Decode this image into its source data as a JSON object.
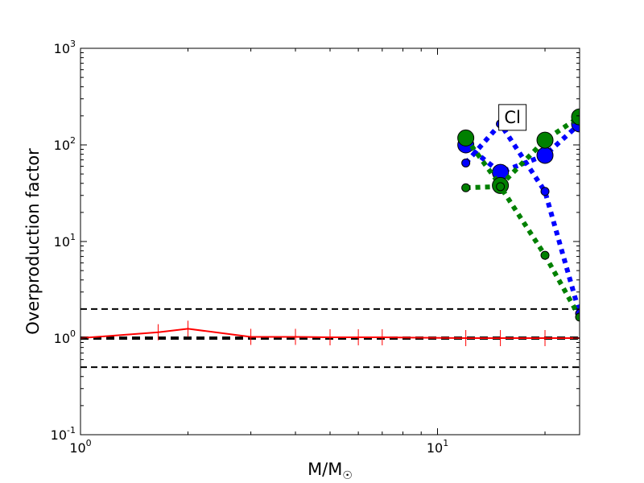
{
  "chart_data": {
    "type": "line",
    "title": "",
    "xlabel": "M/M",
    "xlabel_sub": "☉",
    "ylabel": "Overproduction factor",
    "xscale": "log",
    "yscale": "log",
    "xlim": [
      1,
      25
    ],
    "ylim": [
      0.1,
      1000
    ],
    "x_ticks": [
      {
        "value": 1,
        "base": "10",
        "exp": "0"
      },
      {
        "value": 10,
        "base": "10",
        "exp": "1"
      }
    ],
    "y_ticks": [
      {
        "value": 0.1,
        "base": "10",
        "exp": "-1"
      },
      {
        "value": 1,
        "base": "10",
        "exp": "0"
      },
      {
        "value": 10,
        "base": "10",
        "exp": "1"
      },
      {
        "value": 100,
        "base": "10",
        "exp": "2"
      },
      {
        "value": 1000,
        "base": "10",
        "exp": "3"
      }
    ],
    "reference_lines": [
      {
        "y": 2,
        "color": "#000000",
        "style": "dashed",
        "width": 2
      },
      {
        "y": 1,
        "color": "#000000",
        "style": "dashed",
        "width": 4
      },
      {
        "y": 0.5,
        "color": "#000000",
        "style": "dashed",
        "width": 2
      }
    ],
    "annotation": {
      "text": "Cl",
      "x": 15,
      "y": 200
    },
    "series": [
      {
        "color": "#ff0000",
        "style": "solid",
        "marker": "tick",
        "points": [
          [
            1,
            1.0
          ],
          [
            1.65,
            1.15
          ],
          [
            2,
            1.25
          ],
          [
            3,
            1.03
          ],
          [
            4,
            1.03
          ],
          [
            5,
            1.02
          ],
          [
            6,
            1.02
          ],
          [
            7,
            1.02
          ],
          [
            12,
            1.0
          ],
          [
            15,
            1.0
          ],
          [
            20,
            1.0
          ],
          [
            25,
            1.0
          ]
        ]
      },
      {
        "color": "#0000ff",
        "style": "dotted",
        "marker": "circle-large",
        "points": [
          [
            12,
            100
          ],
          [
            15,
            52
          ],
          [
            20,
            78
          ],
          [
            25,
            165
          ]
        ]
      },
      {
        "color": "#0000ff",
        "style": "dotted",
        "marker": "circle-small",
        "points": [
          [
            12,
            65
          ],
          [
            15,
            165
          ],
          [
            20,
            33
          ],
          [
            25,
            1.8
          ]
        ]
      },
      {
        "color": "#008000",
        "style": "dotted",
        "marker": "circle-large",
        "points": [
          [
            12,
            118
          ],
          [
            15,
            38
          ],
          [
            20,
            112
          ],
          [
            25,
            195
          ]
        ]
      },
      {
        "color": "#008000",
        "style": "dotted",
        "marker": "circle-small",
        "points": [
          [
            12,
            36
          ],
          [
            15,
            37
          ],
          [
            20,
            7.2
          ],
          [
            25,
            1.65
          ]
        ]
      }
    ]
  }
}
